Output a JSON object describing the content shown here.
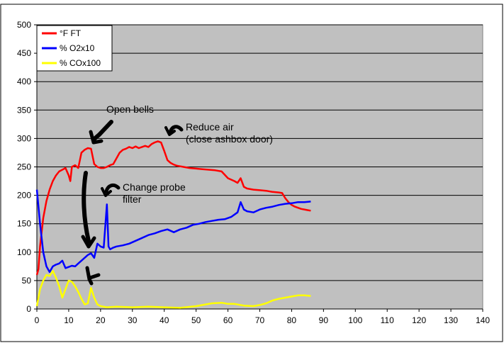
{
  "chart_data": {
    "type": "line",
    "xlim": [
      0,
      140
    ],
    "ylim": [
      0,
      500
    ],
    "x_ticks": [
      "0",
      "10",
      "20",
      "30",
      "40",
      "50",
      "60",
      "70",
      "80",
      "90",
      "100",
      "110",
      "120",
      "130",
      "140"
    ],
    "y_ticks": [
      "0",
      "50",
      "100",
      "150",
      "200",
      "250",
      "300",
      "350",
      "400",
      "450",
      "500"
    ],
    "grid": "horizontal",
    "plot_background": "#c0c0c0",
    "legend_position": "top-left",
    "series": [
      {
        "name": "°F FT",
        "color": "#ff0000",
        "points": [
          [
            0,
            60
          ],
          [
            0.5,
            70
          ],
          [
            1,
            110
          ],
          [
            2,
            160
          ],
          [
            3,
            190
          ],
          [
            4,
            210
          ],
          [
            5,
            225
          ],
          [
            6,
            235
          ],
          [
            7,
            242
          ],
          [
            8,
            245
          ],
          [
            9,
            248
          ],
          [
            10,
            235
          ],
          [
            10.5,
            225
          ],
          [
            11,
            250
          ],
          [
            12,
            253
          ],
          [
            13,
            248
          ],
          [
            14,
            275
          ],
          [
            15,
            280
          ],
          [
            16,
            283
          ],
          [
            17,
            282
          ],
          [
            18,
            255
          ],
          [
            19,
            250
          ],
          [
            20,
            248
          ],
          [
            21,
            248
          ],
          [
            22,
            250
          ],
          [
            23,
            253
          ],
          [
            24,
            255
          ],
          [
            25,
            265
          ],
          [
            26,
            275
          ],
          [
            27,
            280
          ],
          [
            28,
            282
          ],
          [
            29,
            285
          ],
          [
            30,
            283
          ],
          [
            31,
            286
          ],
          [
            32,
            283
          ],
          [
            33,
            285
          ],
          [
            34,
            287
          ],
          [
            35,
            285
          ],
          [
            36,
            290
          ],
          [
            37,
            293
          ],
          [
            38,
            295
          ],
          [
            39,
            293
          ],
          [
            40,
            278
          ],
          [
            41,
            262
          ],
          [
            42,
            257
          ],
          [
            43,
            254
          ],
          [
            44,
            252
          ],
          [
            46,
            250
          ],
          [
            48,
            248
          ],
          [
            50,
            247
          ],
          [
            52,
            246
          ],
          [
            54,
            245
          ],
          [
            56,
            244
          ],
          [
            58,
            242
          ],
          [
            60,
            230
          ],
          [
            62,
            225
          ],
          [
            63,
            222
          ],
          [
            64,
            230
          ],
          [
            65,
            215
          ],
          [
            66,
            212
          ],
          [
            68,
            210
          ],
          [
            70,
            209
          ],
          [
            72,
            208
          ],
          [
            74,
            206
          ],
          [
            76,
            205
          ],
          [
            77,
            204
          ],
          [
            78,
            195
          ],
          [
            79,
            188
          ],
          [
            80,
            183
          ],
          [
            81,
            180
          ],
          [
            82,
            178
          ],
          [
            83,
            176
          ],
          [
            84,
            175
          ],
          [
            85,
            174
          ],
          [
            86,
            173
          ]
        ]
      },
      {
        "name": "% O2x10",
        "color": "#0000ff",
        "points": [
          [
            0,
            210
          ],
          [
            1,
            150
          ],
          [
            2,
            100
          ],
          [
            3,
            75
          ],
          [
            4,
            65
          ],
          [
            5,
            75
          ],
          [
            6,
            78
          ],
          [
            7,
            80
          ],
          [
            8,
            85
          ],
          [
            9,
            72
          ],
          [
            10,
            74
          ],
          [
            11,
            76
          ],
          [
            12,
            75
          ],
          [
            13,
            80
          ],
          [
            14,
            85
          ],
          [
            15,
            90
          ],
          [
            16,
            95
          ],
          [
            17,
            98
          ],
          [
            18,
            90
          ],
          [
            19,
            115
          ],
          [
            20,
            110
          ],
          [
            21,
            108
          ],
          [
            22,
            184
          ],
          [
            22.5,
            110
          ],
          [
            23,
            105
          ],
          [
            24,
            108
          ],
          [
            25,
            110
          ],
          [
            27,
            112
          ],
          [
            29,
            115
          ],
          [
            31,
            120
          ],
          [
            33,
            125
          ],
          [
            35,
            130
          ],
          [
            37,
            133
          ],
          [
            39,
            137
          ],
          [
            41,
            140
          ],
          [
            43,
            135
          ],
          [
            45,
            140
          ],
          [
            47,
            143
          ],
          [
            49,
            148
          ],
          [
            51,
            150
          ],
          [
            53,
            153
          ],
          [
            55,
            155
          ],
          [
            57,
            157
          ],
          [
            59,
            158
          ],
          [
            61,
            162
          ],
          [
            63,
            170
          ],
          [
            64,
            188
          ],
          [
            65,
            175
          ],
          [
            66,
            172
          ],
          [
            68,
            170
          ],
          [
            70,
            175
          ],
          [
            72,
            178
          ],
          [
            74,
            180
          ],
          [
            76,
            183
          ],
          [
            78,
            185
          ],
          [
            80,
            186
          ],
          [
            82,
            188
          ],
          [
            84,
            188
          ],
          [
            86,
            189
          ]
        ]
      },
      {
        "name": "% COx100",
        "color": "#ffff00",
        "points": [
          [
            0,
            5
          ],
          [
            1,
            35
          ],
          [
            2,
            50
          ],
          [
            3,
            60
          ],
          [
            4,
            58
          ],
          [
            5,
            67
          ],
          [
            6,
            55
          ],
          [
            7,
            40
          ],
          [
            8,
            20
          ],
          [
            9,
            35
          ],
          [
            10,
            50
          ],
          [
            11,
            48
          ],
          [
            12,
            40
          ],
          [
            13,
            30
          ],
          [
            14,
            18
          ],
          [
            15,
            8
          ],
          [
            16,
            10
          ],
          [
            17,
            37
          ],
          [
            18,
            20
          ],
          [
            19,
            8
          ],
          [
            20,
            5
          ],
          [
            22,
            3
          ],
          [
            25,
            4
          ],
          [
            30,
            3
          ],
          [
            35,
            4
          ],
          [
            40,
            3
          ],
          [
            45,
            2
          ],
          [
            50,
            5
          ],
          [
            55,
            10
          ],
          [
            58,
            11
          ],
          [
            60,
            9
          ],
          [
            62,
            9
          ],
          [
            65,
            6
          ],
          [
            68,
            5
          ],
          [
            70,
            7
          ],
          [
            72,
            10
          ],
          [
            74,
            15
          ],
          [
            76,
            18
          ],
          [
            78,
            20
          ],
          [
            80,
            22
          ],
          [
            82,
            24
          ],
          [
            84,
            24
          ],
          [
            86,
            23
          ]
        ]
      }
    ],
    "annotations": [
      {
        "lines": [
          "Open bells"
        ]
      },
      {
        "lines": [
          "Reduce air",
          "(close ashbox door)"
        ]
      },
      {
        "lines": [
          "Change probe",
          "filter"
        ]
      }
    ]
  }
}
